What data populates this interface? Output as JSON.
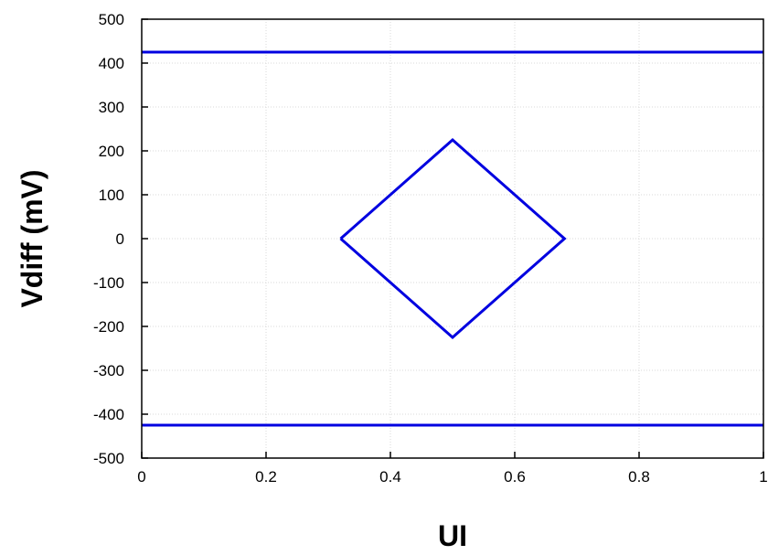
{
  "chart_data": {
    "type": "line",
    "xlabel": "UI",
    "ylabel": "Vdiff (mV)",
    "xlim": [
      0,
      1
    ],
    "ylim": [
      -500,
      500
    ],
    "x_ticks": [
      "0",
      "0.2",
      "0.4",
      "0.6",
      "0.8",
      "1"
    ],
    "y_ticks": [
      "500",
      "400",
      "300",
      "200",
      "100",
      "0",
      "-100",
      "-200",
      "-300",
      "-400",
      "-500"
    ],
    "grid": true,
    "series": [
      {
        "color": "#0000e0",
        "x": [
          0,
          1
        ],
        "y": [
          425,
          425
        ]
      },
      {
        "color": "#0000e0",
        "x": [
          0,
          1
        ],
        "y": [
          -425,
          -425
        ]
      },
      {
        "color": "#0000e0",
        "x": [
          0.32,
          0.5,
          0.68,
          0.5,
          0.32
        ],
        "y": [
          0,
          225,
          0,
          -225,
          0
        ]
      }
    ]
  }
}
